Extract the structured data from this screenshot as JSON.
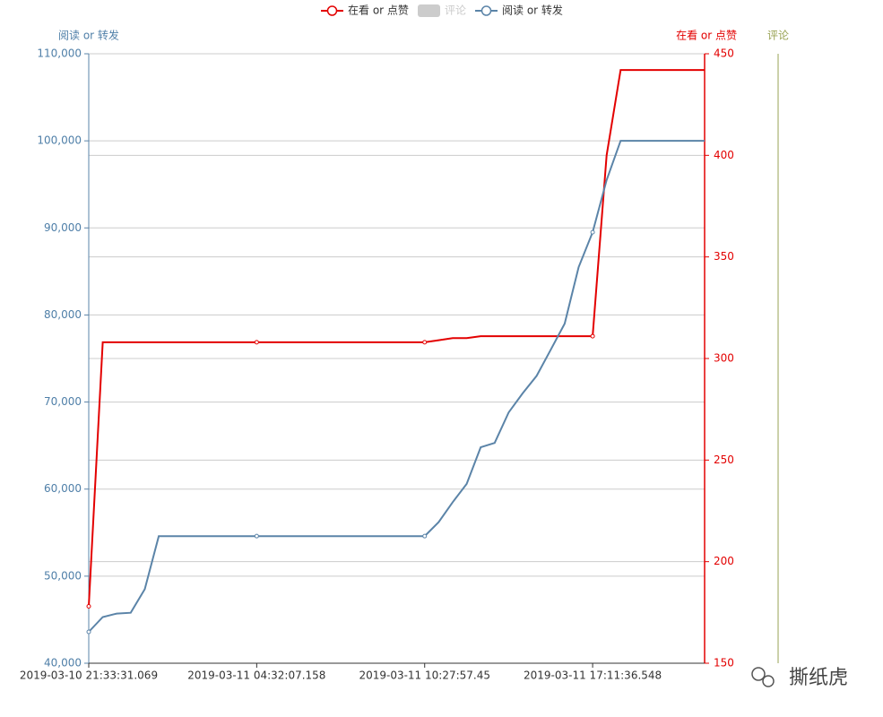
{
  "chart_data": {
    "type": "line",
    "categories": [
      "2019-03-10 21:33:31.069",
      null,
      null,
      null,
      null,
      null,
      null,
      null,
      null,
      null,
      null,
      null,
      "2019-03-11 04:32:07.158",
      null,
      null,
      null,
      null,
      null,
      null,
      null,
      null,
      null,
      null,
      null,
      "2019-03-11 10:27:57.45",
      null,
      null,
      null,
      null,
      null,
      null,
      null,
      null,
      null,
      null,
      null,
      "2019-03-11 17:11:36.548",
      null,
      null,
      null,
      null,
      null,
      null,
      null,
      null
    ],
    "series": [
      {
        "name": "在看 or 点赞",
        "color": "#e30000",
        "axis": "y2",
        "values": [
          178,
          308,
          308,
          308,
          308,
          308,
          308,
          308,
          308,
          308,
          308,
          308,
          308,
          308,
          308,
          308,
          308,
          308,
          308,
          308,
          308,
          308,
          308,
          308,
          308,
          309,
          310,
          310,
          311,
          311,
          311,
          311,
          311,
          311,
          311,
          311,
          311,
          400,
          442,
          442,
          442,
          442,
          442,
          442,
          442
        ]
      },
      {
        "name": "阅读 or 转发",
        "color": "#5b84a8",
        "values": [
          43600,
          45300,
          45700,
          45800,
          48500,
          54600,
          54600,
          54600,
          54600,
          54600,
          54600,
          54600,
          54600,
          54600,
          54600,
          54600,
          54600,
          54600,
          54600,
          54600,
          54600,
          54600,
          54600,
          54600,
          54600,
          56200,
          58500,
          60600,
          64800,
          65300,
          68800,
          71000,
          73000,
          76000,
          79000,
          85500,
          89500,
          95500,
          100000,
          100000,
          100000,
          100000,
          100000,
          100000,
          100000
        ]
      }
    ],
    "y_name": "阅读 or 转发",
    "y2_name": "在看 or 点赞",
    "y3_name": "评论",
    "y3_color": "#9aa354",
    "ylim": [
      40000,
      110000
    ],
    "yticks": [
      {
        "value": 40000,
        "label": "40,000"
      },
      {
        "value": 50000,
        "label": "50,000"
      },
      {
        "value": 60000,
        "label": "60,000"
      },
      {
        "value": 70000,
        "label": "70,000"
      },
      {
        "value": 80000,
        "label": "80,000"
      },
      {
        "value": 90000,
        "label": "90,000"
      },
      {
        "value": 100000,
        "label": "100,000"
      },
      {
        "value": 110000,
        "label": "110,000"
      }
    ],
    "y2lim": [
      150,
      450
    ],
    "y2ticks": [
      150,
      200,
      250,
      300,
      350,
      400,
      450
    ],
    "grid": true,
    "legend": "top",
    "watermark": "撕纸虎"
  }
}
